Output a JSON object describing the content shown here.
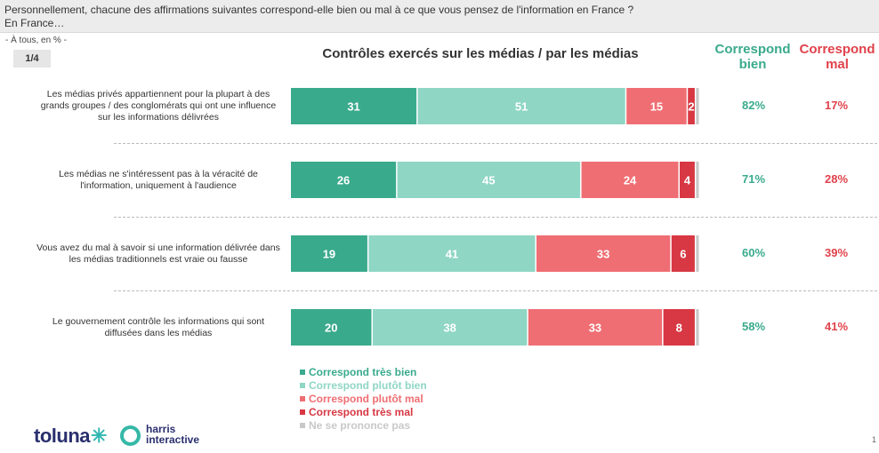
{
  "question": {
    "text": "Personnellement, chacune des affirmations suivantes correspond-elle bien ou mal à ce que vous pensez de l'information en France ?",
    "subtitle": "En France…"
  },
  "base_note": "- À tous, en % -",
  "page_badge": "1/4",
  "columns": {
    "good": "Correspond bien",
    "bad": "Correspond mal"
  },
  "chart_data": {
    "type": "bar",
    "orientation": "horizontal",
    "stacked": true,
    "title": "Contrôles exercés sur les médias / par les médias",
    "categories": [
      "Les médias privés appartiennent pour la plupart à des grands groupes / des conglomérats qui ont une influence sur les informations délivrées",
      "Les médias ne s'intéressent pas à la véracité de l'information, uniquement à l'audience",
      "Vous avez du mal à savoir si une information délivrée dans les médias traditionnels est vraie ou fausse",
      "Le gouvernement contrôle les informations qui sont diffusées dans les médias"
    ],
    "series": [
      {
        "name": "Correspond très bien",
        "values": [
          31,
          26,
          19,
          20
        ],
        "color": "#3aaa8c"
      },
      {
        "name": "Correspond plutôt bien",
        "values": [
          51,
          45,
          41,
          38
        ],
        "color": "#8fd6c5"
      },
      {
        "name": "Correspond plutôt mal",
        "values": [
          15,
          24,
          33,
          33
        ],
        "color": "#ef6e73"
      },
      {
        "name": "Correspond très mal",
        "values": [
          2,
          4,
          6,
          8
        ],
        "color": "#d73843"
      },
      {
        "name": "Ne se prononce pas",
        "values": [
          1,
          1,
          1,
          1
        ],
        "color": "#c8c8c8"
      }
    ],
    "data_labels": [
      [
        "31",
        "51",
        "15",
        "2",
        ""
      ],
      [
        "26",
        "45",
        "24",
        "4",
        ""
      ],
      [
        "19",
        "41",
        "33",
        "6",
        ""
      ],
      [
        "20",
        "38",
        "33",
        "8",
        ""
      ]
    ],
    "totals_good": [
      "82%",
      "71%",
      "60%",
      "58%"
    ],
    "totals_bad": [
      "17%",
      "28%",
      "39%",
      "41%"
    ],
    "xlim": [
      0,
      100
    ],
    "legend_position": "bottom"
  },
  "logos": {
    "toluna": "toluna",
    "harris_line1": "harris",
    "harris_line2": "interactive"
  },
  "page_number": "1"
}
